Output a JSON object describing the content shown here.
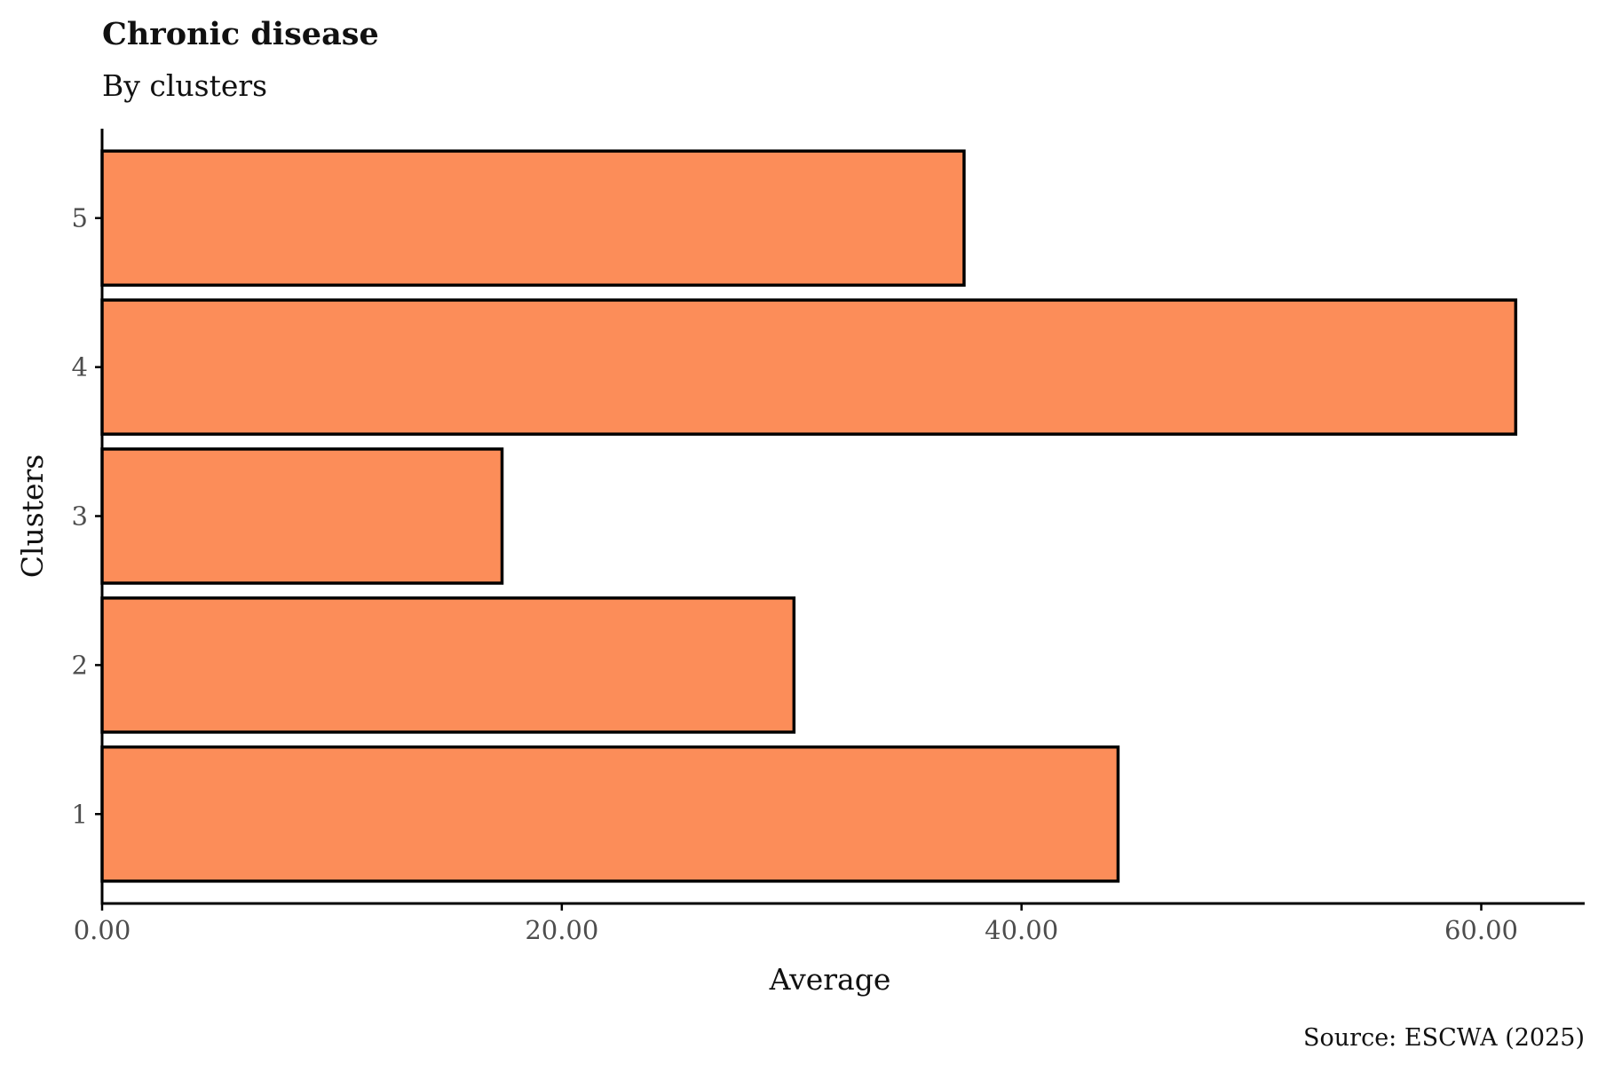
{
  "chart_data": {
    "type": "bar",
    "orientation": "horizontal",
    "title": "Chronic disease",
    "subtitle": "By clusters",
    "xlabel": "Average",
    "ylabel": "Clusters",
    "caption": "Source: ESCWA (2025)",
    "categories": [
      "1",
      "2",
      "3",
      "4",
      "5"
    ],
    "values": [
      44.2,
      30.1,
      17.4,
      61.5,
      37.5
    ],
    "xlim": [
      0,
      64.5
    ],
    "xticks": [
      0,
      20,
      40,
      60
    ],
    "xtick_labels": [
      "0.00",
      "20.00",
      "40.00",
      "60.00"
    ],
    "bar_color": "#fc8d59",
    "edge_color": "#000000",
    "grid": false,
    "legend": "none"
  }
}
